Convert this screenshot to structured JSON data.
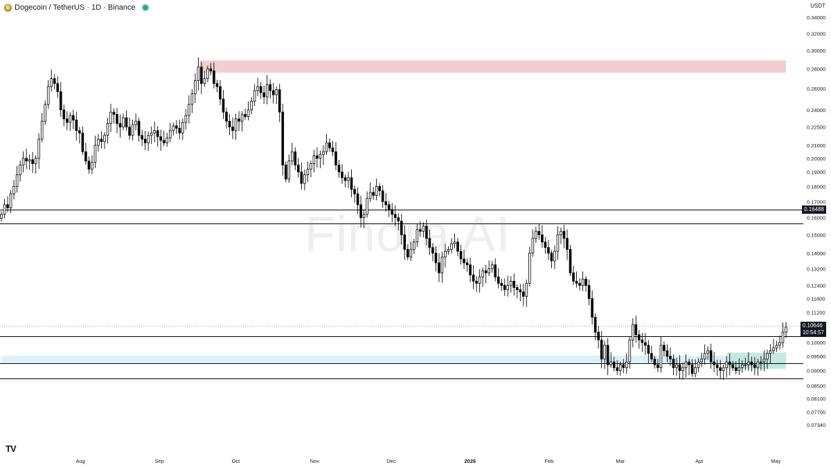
{
  "header": {
    "title": "Dogecoin / TetherUS · 1D · Binance",
    "coin_icon": "dogecoin-icon",
    "status": "market-open",
    "status_color": "#22ab94"
  },
  "currency_label": "USDT",
  "watermark": "Finora AI",
  "logo": "tradingview-logo",
  "price_tags": {
    "level_label": "0.16488",
    "current_price": "0.10646",
    "countdown": "10:54:57"
  },
  "colors": {
    "up_candle": "#ffffff",
    "down_candle": "#000000",
    "candle_border": "#000000",
    "resistance_zone": "#f2c9cc",
    "support_zone_teal": "#bfe6e0",
    "support_zone_light": "#d6f0f4",
    "lines": "#000000"
  },
  "chart_data": {
    "type": "candlestick",
    "symbol": "DOGE/USDT",
    "timeframe": "1D",
    "exchange": "Binance",
    "y_scale": "log",
    "ylim": [
      0.0734,
      0.34
    ],
    "y_ticks": [
      "0.34000",
      "0.32000",
      "0.30000",
      "0.28000",
      "0.26000",
      "0.24000",
      "0.22500",
      "0.21000",
      "0.20000",
      "0.19000",
      "0.18000",
      "0.17000",
      "0.16000",
      "0.15000",
      "0.14000",
      "0.13200",
      "0.12400",
      "0.11800",
      "0.11200",
      "0.10000",
      "0.09500",
      "0.09000",
      "0.08500",
      "0.08100",
      "0.07700",
      "0.07340"
    ],
    "x_ticks": [
      "Aug",
      "Sep",
      "Oct",
      "Nov",
      "Dec",
      "2026",
      "Feb",
      "Mar",
      "Apr",
      "May"
    ],
    "x_range": [
      "2025-07-01",
      "2026-05-05"
    ],
    "grid": false,
    "closes": [
      0.162,
      0.168,
      0.166,
      0.175,
      0.18,
      0.188,
      0.195,
      0.2,
      0.198,
      0.199,
      0.196,
      0.2,
      0.215,
      0.23,
      0.245,
      0.262,
      0.27,
      0.265,
      0.257,
      0.24,
      0.232,
      0.229,
      0.235,
      0.231,
      0.222,
      0.22,
      0.205,
      0.198,
      0.192,
      0.197,
      0.21,
      0.215,
      0.213,
      0.218,
      0.228,
      0.238,
      0.236,
      0.228,
      0.225,
      0.233,
      0.225,
      0.218,
      0.227,
      0.23,
      0.218,
      0.215,
      0.212,
      0.218,
      0.22,
      0.222,
      0.217,
      0.214,
      0.212,
      0.216,
      0.222,
      0.226,
      0.224,
      0.22,
      0.229,
      0.235,
      0.245,
      0.255,
      0.268,
      0.282,
      0.265,
      0.27,
      0.28,
      0.278,
      0.265,
      0.262,
      0.25,
      0.238,
      0.23,
      0.225,
      0.222,
      0.232,
      0.23,
      0.236,
      0.234,
      0.24,
      0.248,
      0.258,
      0.262,
      0.256,
      0.252,
      0.264,
      0.258,
      0.254,
      0.259,
      0.238,
      0.195,
      0.185,
      0.198,
      0.205,
      0.195,
      0.19,
      0.182,
      0.188,
      0.192,
      0.196,
      0.202,
      0.2,
      0.203,
      0.205,
      0.212,
      0.208,
      0.205,
      0.195,
      0.19,
      0.186,
      0.184,
      0.186,
      0.178,
      0.175,
      0.168,
      0.16,
      0.162,
      0.172,
      0.176,
      0.174,
      0.18,
      0.177,
      0.17,
      0.168,
      0.165,
      0.162,
      0.16,
      0.158,
      0.15,
      0.142,
      0.138,
      0.142,
      0.146,
      0.153,
      0.152,
      0.155,
      0.148,
      0.143,
      0.14,
      0.135,
      0.13,
      0.138,
      0.141,
      0.142,
      0.145,
      0.146,
      0.141,
      0.137,
      0.135,
      0.134,
      0.129,
      0.126,
      0.125,
      0.128,
      0.131,
      0.13,
      0.132,
      0.134,
      0.128,
      0.125,
      0.124,
      0.122,
      0.124,
      0.126,
      0.123,
      0.122,
      0.121,
      0.119,
      0.125,
      0.14,
      0.148,
      0.152,
      0.15,
      0.146,
      0.143,
      0.14,
      0.136,
      0.141,
      0.15,
      0.152,
      0.148,
      0.142,
      0.13,
      0.126,
      0.125,
      0.124,
      0.127,
      0.124,
      0.118,
      0.11,
      0.104,
      0.101,
      0.094,
      0.099,
      0.092,
      0.093,
      0.091,
      0.09,
      0.092,
      0.091,
      0.093,
      0.101,
      0.107,
      0.103,
      0.101,
      0.1,
      0.099,
      0.096,
      0.094,
      0.092,
      0.091,
      0.099,
      0.097,
      0.095,
      0.094,
      0.091,
      0.092,
      0.09,
      0.091,
      0.093,
      0.092,
      0.089,
      0.091,
      0.093,
      0.094,
      0.096,
      0.097,
      0.093,
      0.092,
      0.091,
      0.09,
      0.091,
      0.093,
      0.092,
      0.091,
      0.09,
      0.091,
      0.092,
      0.092,
      0.093,
      0.092,
      0.091,
      0.093,
      0.093,
      0.094,
      0.096,
      0.097,
      0.098,
      0.099,
      0.1,
      0.104,
      0.106
    ],
    "levels": [
      {
        "value": 0.16488,
        "label": "0.16488"
      },
      {
        "value": 0.1565
      },
      {
        "value": 0.1023
      },
      {
        "value": 0.0925
      },
      {
        "value": 0.0873
      }
    ],
    "zones": [
      {
        "kind": "resistance",
        "from_date": "2025-09-17",
        "to_date": "2026-05-05",
        "low": 0.276,
        "high": 0.289
      },
      {
        "kind": "support-wide",
        "from_date": "2025-07-01",
        "to_date": "2026-04-20",
        "low": 0.0927,
        "high": 0.0952
      },
      {
        "kind": "support",
        "from_date": "2026-04-12",
        "to_date": "2026-05-05",
        "low": 0.0906,
        "high": 0.0963
      }
    ],
    "current_price": 0.10646
  }
}
